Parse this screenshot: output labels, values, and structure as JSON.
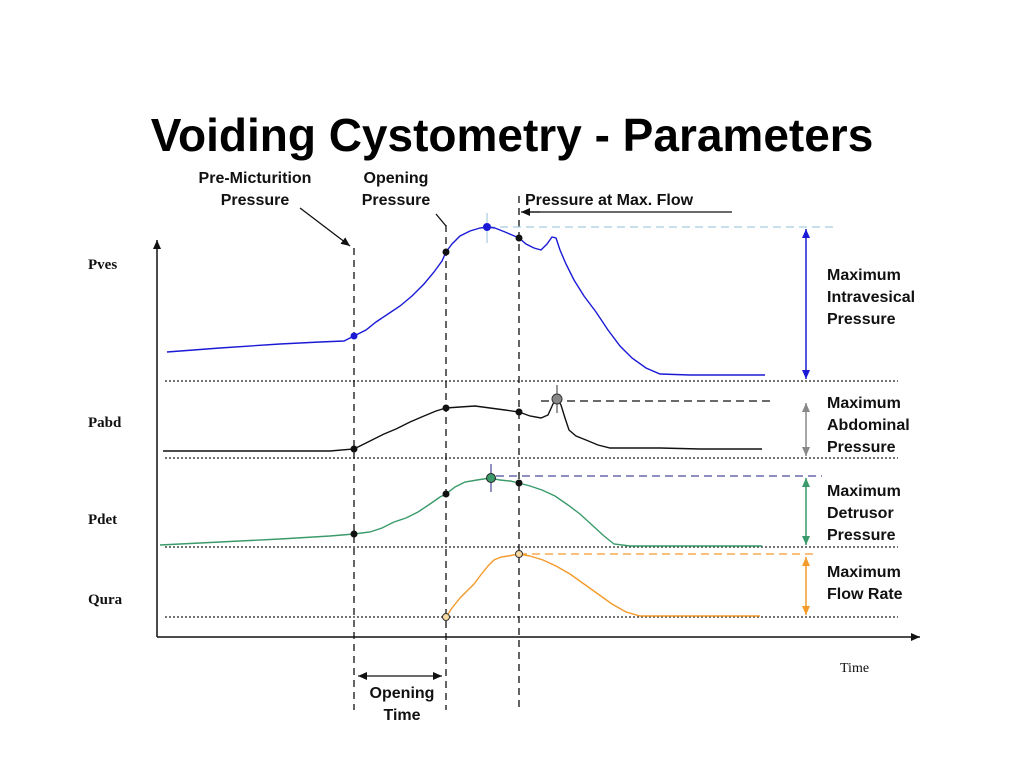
{
  "title": "Voiding Cystometry - Parameters",
  "annotations": {
    "pre_micturition": [
      "Pre-Micturition",
      "Pressure"
    ],
    "opening_pressure": [
      "Opening",
      "Pressure"
    ],
    "pressure_at_max_flow": "Pressure at  Max. Flow",
    "opening_time": [
      "Opening",
      "Time"
    ]
  },
  "traces": {
    "pves": "Pves",
    "pabd": "Pabd",
    "pdet": "Pdet",
    "qura": "Qura"
  },
  "right_labels": {
    "max_intravesical": [
      "Maximum",
      "Intravesical",
      "Pressure"
    ],
    "max_abdominal": [
      "Maximum",
      "Abdominal",
      "Pressure"
    ],
    "max_detrusor": [
      "Maximum",
      "Detrusor",
      "Pressure"
    ],
    "max_flow": [
      "Maximum",
      "Flow Rate"
    ]
  },
  "axis": {
    "x_label": "Time"
  },
  "colors": {
    "pves": "#1a1ad6",
    "pabd": "#111111",
    "pdet": "#3a9a6a",
    "qura": "#f39a2a",
    "pabd_marker": "#888888",
    "pdet_marker": "#3a9a6a",
    "pves_dash": "#a8cde0",
    "pdet_dash": "#4a4a9a"
  }
}
